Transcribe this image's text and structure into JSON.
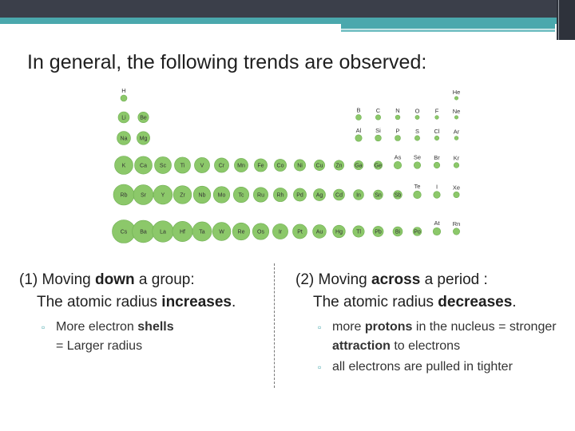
{
  "title": "In general, the following trends are observed:",
  "periodic_table": {
    "rows": [
      [
        "H",
        "",
        "",
        "",
        "",
        "",
        "",
        "",
        "",
        "",
        "",
        "",
        "",
        "",
        "",
        "",
        "",
        "He"
      ],
      [
        "Li",
        "Be",
        "",
        "",
        "",
        "",
        "",
        "",
        "",
        "",
        "",
        "",
        "B",
        "C",
        "N",
        "O",
        "F",
        "Ne"
      ],
      [
        "Na",
        "Mg",
        "",
        "",
        "",
        "",
        "",
        "",
        "",
        "",
        "",
        "",
        "Al",
        "Si",
        "P",
        "S",
        "Cl",
        "Ar"
      ],
      [
        "K",
        "Ca",
        "Sc",
        "Ti",
        "V",
        "Cr",
        "Mn",
        "Fe",
        "Co",
        "Ni",
        "Cu",
        "Zn",
        "Ga",
        "Ge",
        "As",
        "Se",
        "Br",
        "Kr"
      ],
      [
        "Rb",
        "Sr",
        "Y",
        "Zr",
        "Nb",
        "Mo",
        "Tc",
        "Ru",
        "Rh",
        "Pd",
        "Ag",
        "Cd",
        "In",
        "Sn",
        "Sb",
        "Te",
        "I",
        "Xe"
      ],
      [
        "Cs",
        "Ba",
        "La",
        "Hf",
        "Ta",
        "W",
        "Re",
        "Os",
        "Ir",
        "Pt",
        "Au",
        "Hg",
        "Tl",
        "Pb",
        "Bi",
        "Po",
        "At",
        "Rn"
      ]
    ]
  },
  "left": {
    "heading_pre": "(1) Moving ",
    "heading_bold": "down",
    "heading_post": " a group:",
    "sub_pre": "The atomic radius ",
    "sub_bold": "increases",
    "sub_post": ".",
    "bullet_pre": "More electron ",
    "bullet_bold": "shells",
    "bullet_line2": "= Larger radius"
  },
  "right": {
    "heading_pre": "(2) Moving ",
    "heading_bold": "across",
    "heading_post": " a period :",
    "sub_pre": "The atomic radius ",
    "sub_bold": "decreases",
    "sub_post": ".",
    "bullet1_pre": "more ",
    "bullet1_bold1": "protons",
    "bullet1_mid": " in the nucleus = stronger ",
    "bullet1_bold2": "attraction",
    "bullet1_post": " to electrons",
    "bullet2": "all electrons are pulled in tighter"
  },
  "colors": {
    "accent": "#4aa8ad",
    "bar": "#3b3f4a",
    "circle": "#8cc86a"
  }
}
